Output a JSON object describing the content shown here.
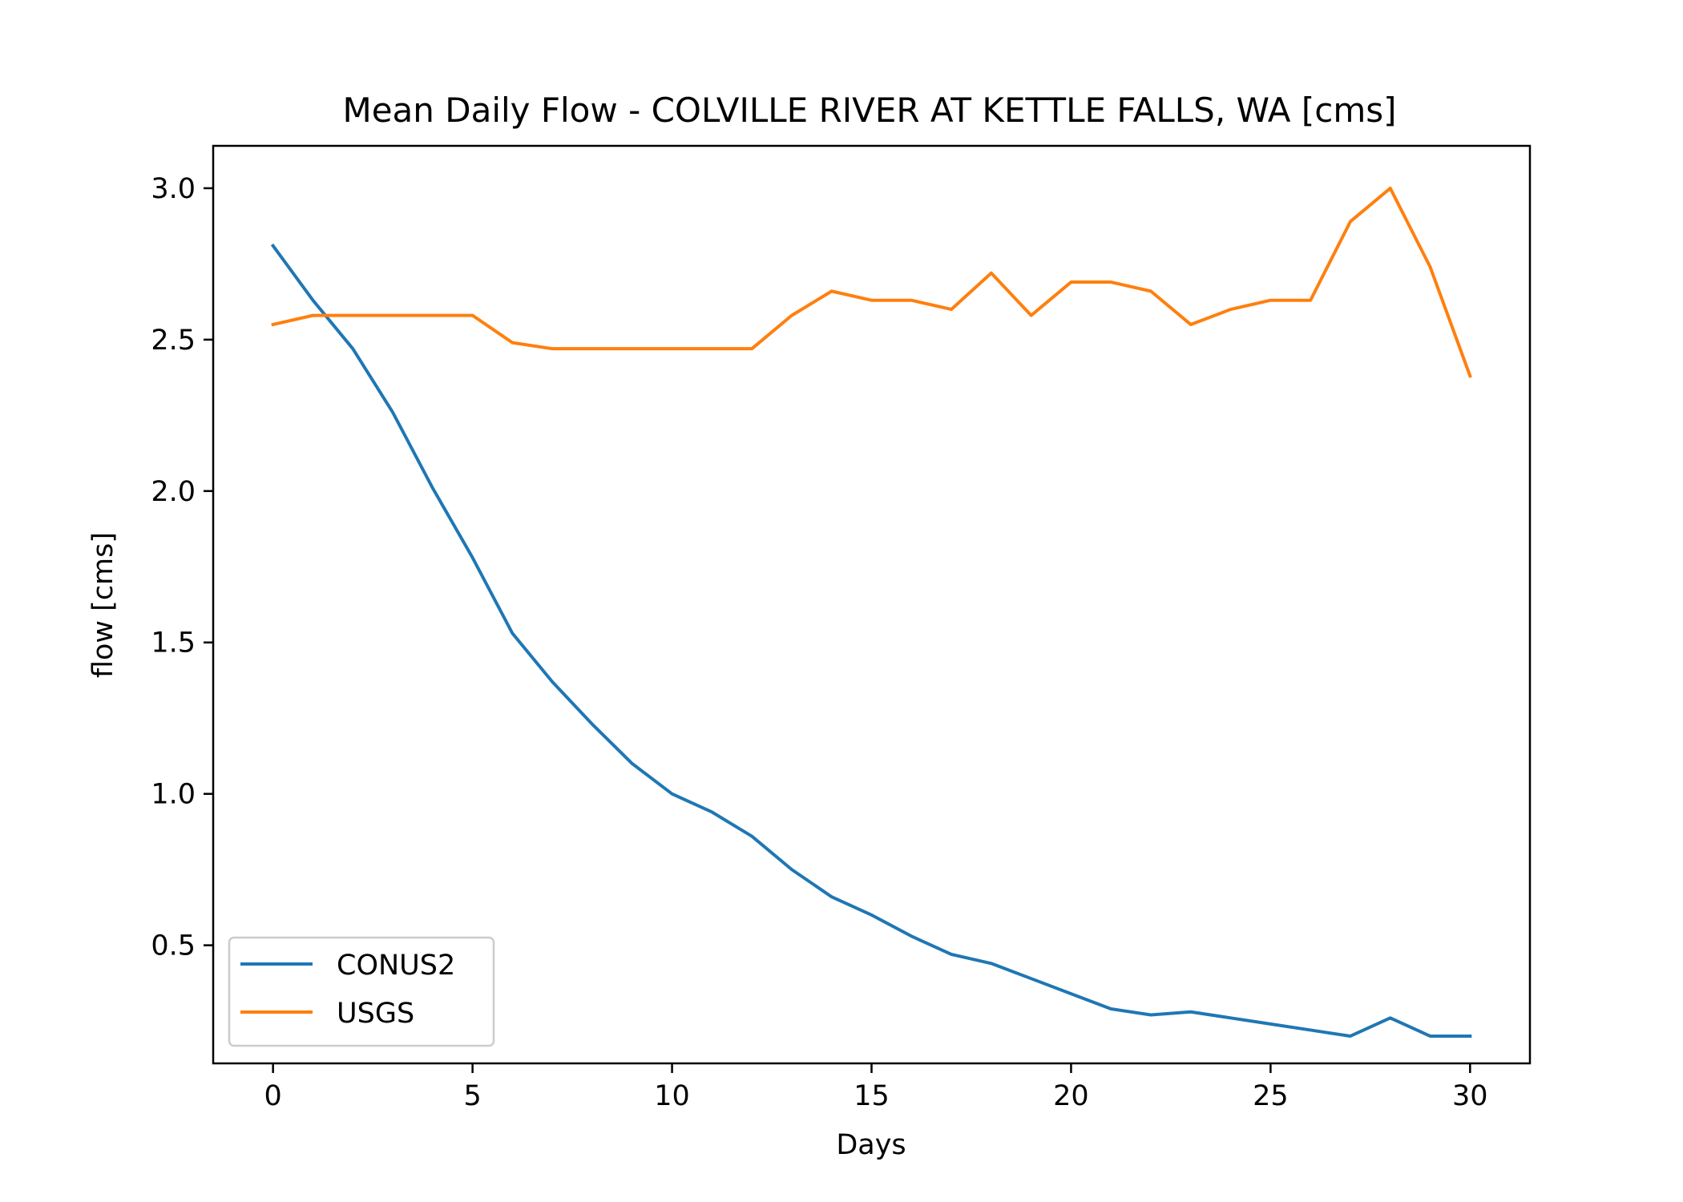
{
  "chart_data": {
    "type": "line",
    "title": "Mean Daily Flow - COLVILLE RIVER AT KETTLE FALLS, WA [cms]",
    "xlabel": "Days",
    "ylabel": "flow [cms]",
    "xlim": [
      -1.5,
      31.5
    ],
    "ylim": [
      0.11,
      3.14
    ],
    "xticks": [
      0,
      5,
      10,
      15,
      20,
      25,
      30
    ],
    "xtick_labels": [
      "0",
      "5",
      "10",
      "15",
      "20",
      "25",
      "30"
    ],
    "yticks": [
      0.5,
      1.0,
      1.5,
      2.0,
      2.5,
      3.0
    ],
    "ytick_labels": [
      "0.5",
      "1.0",
      "1.5",
      "2.0",
      "2.5",
      "3.0"
    ],
    "grid": false,
    "legend_position": "lower-left",
    "x": [
      0,
      1,
      2,
      3,
      4,
      5,
      6,
      7,
      8,
      9,
      10,
      11,
      12,
      13,
      14,
      15,
      16,
      17,
      18,
      19,
      20,
      21,
      22,
      23,
      24,
      25,
      26,
      27,
      28,
      29,
      30
    ],
    "series": [
      {
        "name": "CONUS2",
        "color": "#1f77b4",
        "values": [
          2.81,
          2.63,
          2.47,
          2.26,
          2.01,
          1.78,
          1.53,
          1.37,
          1.23,
          1.1,
          1.0,
          0.94,
          0.86,
          0.75,
          0.66,
          0.6,
          0.53,
          0.47,
          0.44,
          0.39,
          0.34,
          0.29,
          0.27,
          0.28,
          0.26,
          0.24,
          0.22,
          0.2,
          0.26,
          0.2,
          0.2
        ]
      },
      {
        "name": "USGS",
        "color": "#ff7f0e",
        "values": [
          2.55,
          2.58,
          2.58,
          2.58,
          2.58,
          2.58,
          2.49,
          2.47,
          2.47,
          2.47,
          2.47,
          2.47,
          2.47,
          2.58,
          2.66,
          2.63,
          2.63,
          2.6,
          2.72,
          2.58,
          2.69,
          2.69,
          2.66,
          2.55,
          2.6,
          2.63,
          2.63,
          2.89,
          3.0,
          2.74,
          2.38
        ]
      }
    ]
  }
}
